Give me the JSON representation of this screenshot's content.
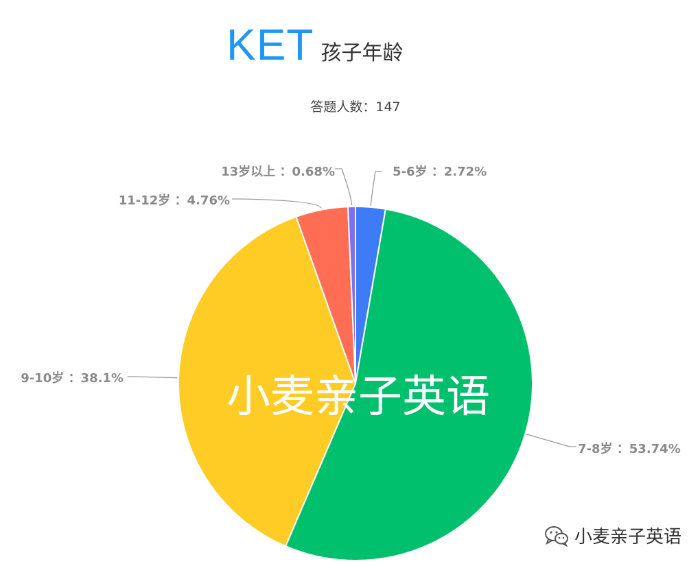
{
  "header": {
    "title": "KET",
    "subtitle": "孩子年龄",
    "respondents": "答题人数：147"
  },
  "watermark": {
    "center_text": "小麦亲子英语",
    "footer_text": "小麦亲子英语",
    "footer_icon": "wechat-icon"
  },
  "chart_data": {
    "type": "pie",
    "title": "孩子年龄",
    "unit": "%",
    "start_angle_deg": 0,
    "direction": "clockwise",
    "slices": [
      {
        "label": "5-6岁",
        "value": 2.72,
        "display": "5-6岁 ：2.72%",
        "color": "#3d7cf4"
      },
      {
        "label": "7-8岁",
        "value": 53.74,
        "display": "7-8岁 ：53.74%",
        "color": "#00c06d"
      },
      {
        "label": "9-10岁",
        "value": 38.1,
        "display": "9-10岁 ：38.1%",
        "color": "#fecc25"
      },
      {
        "label": "11-12岁",
        "value": 4.76,
        "display": "11-12岁 ：4.76%",
        "color": "#ff6d55"
      },
      {
        "label": "13岁以上",
        "value": 0.68,
        "display": "13岁以上 ：0.68%",
        "color": "#7f6ef2"
      }
    ]
  }
}
